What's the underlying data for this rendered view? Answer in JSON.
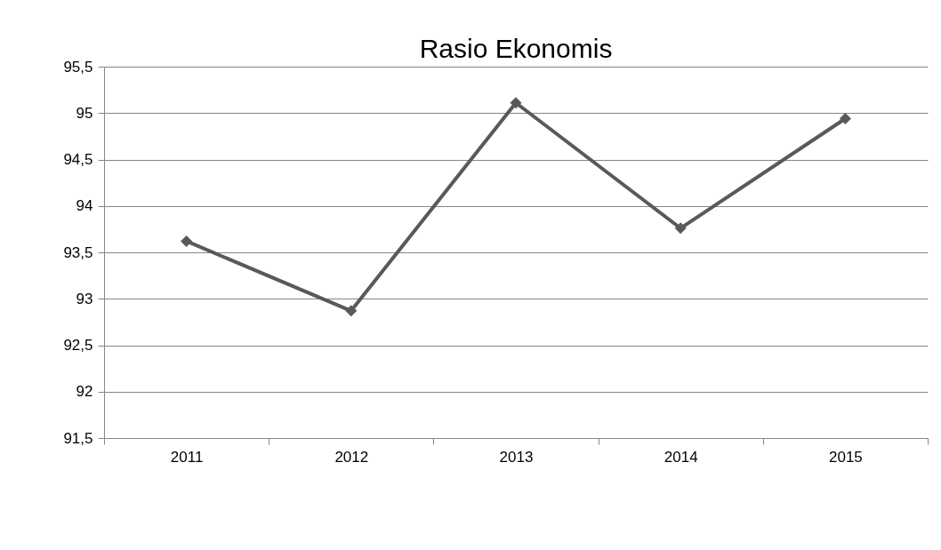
{
  "chart_data": {
    "type": "line",
    "title": "Rasio  Ekonomis",
    "categories": [
      "2011",
      "2012",
      "2013",
      "2014",
      "2015"
    ],
    "series": [
      {
        "color": "#595959",
        "values": [
          93.62,
          92.87,
          95.11,
          93.76,
          94.94
        ]
      }
    ],
    "ylim": [
      91.5,
      95.5
    ],
    "yticks": [
      {
        "value": 91.5,
        "label": "91,5"
      },
      92,
      {
        "value": 92.5,
        "label": "92,5"
      },
      93,
      {
        "value": 93.5,
        "label": "93,5"
      },
      94,
      {
        "value": 94.5,
        "label": "94,5"
      },
      95,
      {
        "value": 95.5,
        "label": "95,5"
      }
    ],
    "grid": "y",
    "marker": "diamond",
    "line_style": "solid"
  }
}
